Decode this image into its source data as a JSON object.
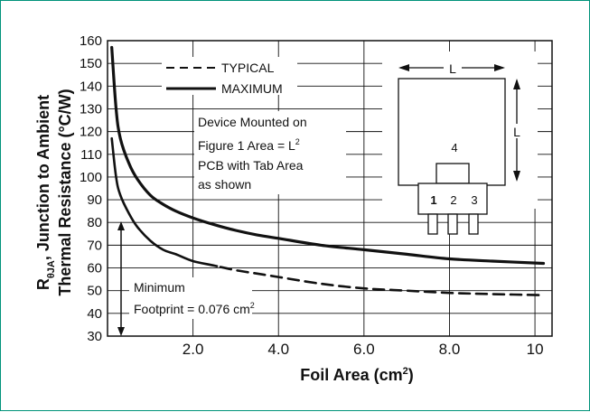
{
  "chart_data": {
    "type": "line",
    "xlabel": "Foil Area (cm",
    "xlabel_sup": "2",
    "xlabel_tail": ")",
    "ylabel_main": "R",
    "ylabel_sub": "θJA",
    "ylabel_rest": ", Junction to Ambient",
    "ylabel_line2": "Thermal Resistance (°C/W)",
    "xlim": [
      0,
      10.4
    ],
    "ylim": [
      30,
      160
    ],
    "x_ticks": [
      2,
      4,
      6,
      8,
      10
    ],
    "x_tick_labels": [
      "2.0",
      "4.0",
      "6.0",
      "8.0",
      "10"
    ],
    "y_ticks": [
      30,
      40,
      50,
      60,
      70,
      80,
      90,
      100,
      110,
      120,
      130,
      140,
      150,
      160
    ],
    "y_tick_labels": [
      "30",
      "40",
      "50",
      "60",
      "70",
      "80",
      "90",
      "100",
      "110",
      "120",
      "130",
      "140",
      "150",
      "160"
    ],
    "grid": true,
    "legend_position": "top-left",
    "series": [
      {
        "name": "TYPICAL",
        "style": "dashed",
        "x": [
          0.1,
          0.2,
          0.3,
          0.5,
          0.7,
          1.0,
          1.3,
          1.6,
          2.0,
          2.5,
          3.0,
          3.5,
          4.0,
          5.0,
          6.0,
          7.0,
          8.0,
          9.0,
          10.2
        ],
        "y": [
          117,
          100,
          92,
          84,
          78,
          72,
          68,
          66,
          63,
          61,
          59,
          57.5,
          56,
          53,
          51,
          50,
          49,
          48.5,
          48
        ]
      },
      {
        "name": "MAXIMUM",
        "style": "solid",
        "x": [
          0.1,
          0.2,
          0.3,
          0.5,
          0.7,
          1.0,
          1.3,
          1.6,
          2.0,
          2.5,
          3.0,
          3.5,
          4.0,
          5.0,
          6.0,
          7.0,
          8.0,
          9.0,
          10.2
        ],
        "y": [
          157,
          130,
          117,
          106,
          99,
          92,
          88,
          85,
          82,
          79,
          76.5,
          74.5,
          73,
          70,
          68,
          66,
          64,
          63,
          62
        ]
      }
    ],
    "annotations": {
      "device_note": [
        "Device Mounted on",
        "Figure 1 Area = L",
        "PCB with Tab Area",
        "as shown"
      ],
      "device_note_sup": "2",
      "footprint_line1": "Minimum",
      "footprint_line2": "Footprint = 0.076 cm",
      "footprint_sup": "2",
      "inset_dim_top": "L",
      "inset_dim_side": "L",
      "inset_tab": "4",
      "inset_pins": [
        "1",
        "2",
        "3"
      ]
    }
  }
}
